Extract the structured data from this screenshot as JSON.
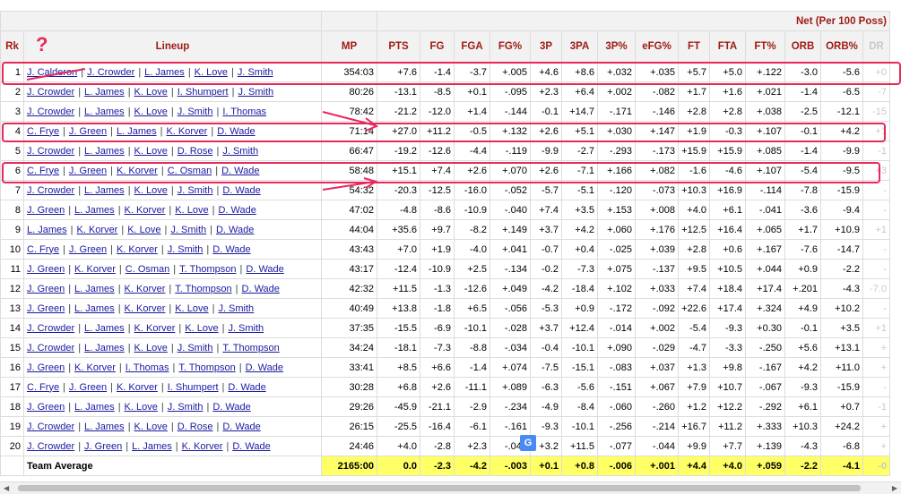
{
  "header": {
    "rk": "Rk",
    "lineup": "Lineup",
    "net": "Net (Per 100 Poss)",
    "columns": [
      "MP",
      "PTS",
      "FG",
      "FGA",
      "FG%",
      "3P",
      "3PA",
      "3P%",
      "eFG%",
      "FT",
      "FTA",
      "FT%",
      "ORB",
      "ORB%",
      "DR"
    ]
  },
  "rows": [
    {
      "rk": "1",
      "players": [
        "J. Calderon",
        "J. Crowder",
        "L. James",
        "K. Love",
        "J. Smith"
      ],
      "vals": [
        "354:03",
        "+7.6",
        "-1.4",
        "-3.7",
        "+.005",
        "+4.6",
        "+8.6",
        "+.032",
        "+.035",
        "+5.7",
        "+5.0",
        "+.122",
        "-3.0",
        "-5.6",
        "+0"
      ]
    },
    {
      "rk": "2",
      "players": [
        "J. Crowder",
        "L. James",
        "K. Love",
        "I. Shumpert",
        "J. Smith"
      ],
      "vals": [
        "80:26",
        "-13.1",
        "-8.5",
        "+0.1",
        "-.095",
        "+2.3",
        "+6.4",
        "+.002",
        "-.082",
        "+1.7",
        "+1.6",
        "+.021",
        "-1.4",
        "-6.5",
        "-7"
      ]
    },
    {
      "rk": "3",
      "players": [
        "J. Crowder",
        "L. James",
        "K. Love",
        "J. Smith",
        "I. Thomas"
      ],
      "vals": [
        "78:42",
        "-21.2",
        "-12.0",
        "+1.4",
        "-.144",
        "-0.1",
        "+14.7",
        "-.171",
        "-.146",
        "+2.8",
        "+2.8",
        "+.038",
        "-2.5",
        "-12.1",
        "-15"
      ]
    },
    {
      "rk": "4",
      "players": [
        "C. Frye",
        "J. Green",
        "L. James",
        "K. Korver",
        "D. Wade"
      ],
      "vals": [
        "71:14",
        "+27.0",
        "+11.2",
        "-0.5",
        "+.132",
        "+2.6",
        "+5.1",
        "+.030",
        "+.147",
        "+1.9",
        "-0.3",
        "+.107",
        "-0.1",
        "+4.2",
        "+1"
      ]
    },
    {
      "rk": "5",
      "players": [
        "J. Crowder",
        "L. James",
        "K. Love",
        "D. Rose",
        "J. Smith"
      ],
      "vals": [
        "66:47",
        "-19.2",
        "-12.6",
        "-4.4",
        "-.119",
        "-9.9",
        "-2.7",
        "-.293",
        "-.173",
        "+15.9",
        "+15.9",
        "+.085",
        "-1.4",
        "-9.9",
        "-1"
      ]
    },
    {
      "rk": "6",
      "players": [
        "C. Frye",
        "J. Green",
        "K. Korver",
        "C. Osman",
        "D. Wade"
      ],
      "vals": [
        "58:48",
        "+15.1",
        "+7.4",
        "+2.6",
        "+.070",
        "+2.6",
        "-7.1",
        "+.166",
        "+.082",
        "-1.6",
        "-4.6",
        "+.107",
        "-5.4",
        "-9.5",
        "+3"
      ]
    },
    {
      "rk": "7",
      "players": [
        "J. Crowder",
        "L. James",
        "K. Love",
        "J. Smith",
        "D. Wade"
      ],
      "vals": [
        "54:32",
        "-20.3",
        "-12.5",
        "-16.0",
        "-.052",
        "-5.7",
        "-5.1",
        "-.120",
        "-.073",
        "+10.3",
        "+16.9",
        "-.114",
        "-7.8",
        "-15.9",
        "-"
      ]
    },
    {
      "rk": "8",
      "players": [
        "J. Green",
        "L. James",
        "K. Korver",
        "K. Love",
        "D. Wade"
      ],
      "vals": [
        "47:02",
        "-4.8",
        "-8.6",
        "-10.9",
        "-.040",
        "+7.4",
        "+3.5",
        "+.153",
        "+.008",
        "+4.0",
        "+6.1",
        "-.041",
        "-3.6",
        "-9.4",
        "-"
      ]
    },
    {
      "rk": "9",
      "players": [
        "L. James",
        "K. Korver",
        "K. Love",
        "J. Smith",
        "D. Wade"
      ],
      "vals": [
        "44:04",
        "+35.6",
        "+9.7",
        "-8.2",
        "+.149",
        "+3.7",
        "+4.2",
        "+.060",
        "+.176",
        "+12.5",
        "+16.4",
        "+.065",
        "+1.7",
        "+10.9",
        "+1"
      ]
    },
    {
      "rk": "10",
      "players": [
        "C. Frye",
        "J. Green",
        "K. Korver",
        "J. Smith",
        "D. Wade"
      ],
      "vals": [
        "43:43",
        "+7.0",
        "+1.9",
        "-4.0",
        "+.041",
        "-0.7",
        "+0.4",
        "-.025",
        "+.039",
        "+2.8",
        "+0.6",
        "+.167",
        "-7.6",
        "-14.7",
        "-"
      ]
    },
    {
      "rk": "11",
      "players": [
        "J. Green",
        "K. Korver",
        "C. Osman",
        "T. Thompson",
        "D. Wade"
      ],
      "vals": [
        "43:17",
        "-12.4",
        "-10.9",
        "+2.5",
        "-.134",
        "-0.2",
        "-7.3",
        "+.075",
        "-.137",
        "+9.5",
        "+10.5",
        "+.044",
        "+0.9",
        "-2.2",
        "-"
      ]
    },
    {
      "rk": "12",
      "players": [
        "J. Green",
        "L. James",
        "K. Korver",
        "T. Thompson",
        "D. Wade"
      ],
      "vals": [
        "42:32",
        "+11.5",
        "-1.3",
        "-12.6",
        "+.049",
        "-4.2",
        "-18.4",
        "+.102",
        "+.033",
        "+7.4",
        "+18.4",
        "+17.4",
        "+.201",
        "-4.3",
        "-7.0"
      ]
    },
    {
      "rk": "13",
      "players": [
        "J. Green",
        "L. James",
        "K. Korver",
        "K. Love",
        "J. Smith"
      ],
      "vals": [
        "40:49",
        "+13.8",
        "-1.8",
        "+6.5",
        "-.056",
        "-5.3",
        "+0.9",
        "-.172",
        "-.092",
        "+22.6",
        "+17.4",
        "+.324",
        "+4.9",
        "+10.2",
        "-"
      ]
    },
    {
      "rk": "14",
      "players": [
        "J. Crowder",
        "L. James",
        "K. Korver",
        "K. Love",
        "J. Smith"
      ],
      "vals": [
        "37:35",
        "-15.5",
        "-6.9",
        "-10.1",
        "-.028",
        "+3.7",
        "+12.4",
        "-.014",
        "+.002",
        "-5.4",
        "-9.3",
        "+0.30",
        "-0.1",
        "+3.5",
        "+1"
      ]
    },
    {
      "rk": "15",
      "players": [
        "J. Crowder",
        "L. James",
        "K. Love",
        "J. Smith",
        "T. Thompson"
      ],
      "vals": [
        "34:24",
        "-18.1",
        "-7.3",
        "-8.8",
        "-.034",
        "-0.4",
        "-10.1",
        "+.090",
        "-.029",
        "-4.7",
        "-3.3",
        "-.250",
        "+5.6",
        "+13.1",
        "+"
      ]
    },
    {
      "rk": "16",
      "players": [
        "J. Green",
        "K. Korver",
        "I. Thomas",
        "T. Thompson",
        "D. Wade"
      ],
      "vals": [
        "33:41",
        "+8.5",
        "+6.6",
        "-1.4",
        "+.074",
        "-7.5",
        "-15.1",
        "-.083",
        "+.037",
        "+1.3",
        "+9.8",
        "-.167",
        "+4.2",
        "+11.0",
        "+"
      ]
    },
    {
      "rk": "17",
      "players": [
        "C. Frye",
        "J. Green",
        "K. Korver",
        "I. Shumpert",
        "D. Wade"
      ],
      "vals": [
        "30:28",
        "+6.8",
        "+2.6",
        "-11.1",
        "+.089",
        "-6.3",
        "-5.6",
        "-.151",
        "+.067",
        "+7.9",
        "+10.7",
        "-.067",
        "-9.3",
        "-15.9",
        "-"
      ]
    },
    {
      "rk": "18",
      "players": [
        "J. Green",
        "L. James",
        "K. Love",
        "J. Smith",
        "D. Wade"
      ],
      "vals": [
        "29:26",
        "-45.9",
        "-21.1",
        "-2.9",
        "-.234",
        "-4.9",
        "-8.4",
        "-.060",
        "-.260",
        "+1.2",
        "+12.2",
        "-.292",
        "+6.1",
        "+0.7",
        "-1"
      ]
    },
    {
      "rk": "19",
      "players": [
        "J. Crowder",
        "L. James",
        "K. Love",
        "D. Rose",
        "D. Wade"
      ],
      "vals": [
        "26:15",
        "-25.5",
        "-16.4",
        "-6.1",
        "-.161",
        "-9.3",
        "-10.1",
        "-.256",
        "-.214",
        "+16.7",
        "+11.2",
        "+.333",
        "+10.3",
        "+24.2",
        "+"
      ]
    },
    {
      "rk": "20",
      "players": [
        "J. Crowder",
        "J. Green",
        "L. James",
        "K. Korver",
        "D. Wade"
      ],
      "vals": [
        "24:46",
        "+4.0",
        "-2.8",
        "+2.3",
        "-.042",
        "+3.2",
        "+11.5",
        "-.077",
        "-.044",
        "+9.9",
        "+7.7",
        "+.139",
        "-4.3",
        "-6.8",
        "+"
      ]
    }
  ],
  "average": {
    "label": "Team Average",
    "vals": [
      "2165:00",
      "0.0",
      "-2.3",
      "-4.2",
      "-.003",
      "+0.1",
      "+0.8",
      "-.006",
      "+.001",
      "+4.4",
      "+4.0",
      "+.059",
      "-2.2",
      "-4.1",
      "-0"
    ]
  },
  "annotation": {
    "question_mark": "?",
    "marker_color": "#e8285a"
  },
  "translate_icon": "G",
  "colors": {
    "header_text": "#9e1b12",
    "link": "#1a1a9f",
    "highlight": "#ffff66"
  }
}
